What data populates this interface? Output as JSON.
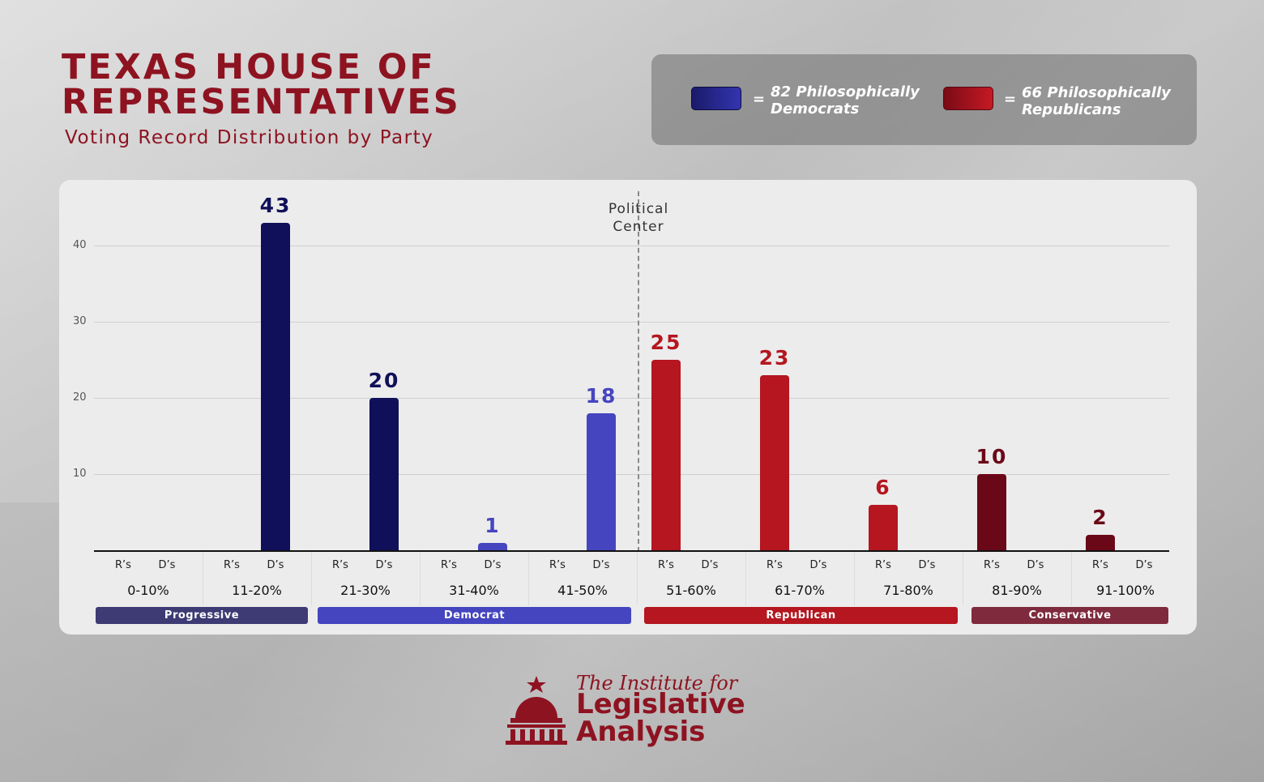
{
  "header": {
    "title_line1": "TEXAS HOUSE OF",
    "title_line2": "REPRESENTATIVES",
    "subtitle": "Voting Record Distribution by Party"
  },
  "legend": {
    "eq": "=",
    "democrats_line1": "82 Philosophically",
    "democrats_line2": "Democrats",
    "republicans_line1": "66 Philosophically",
    "republicans_line2": "Republicans",
    "democrat_color": "#2b2b9a",
    "republican_color": "#b5141f"
  },
  "chart_data": {
    "type": "bar",
    "title": "TEXAS HOUSE OF REPRESENTATIVES",
    "subtitle": "Voting Record Distribution by Party",
    "ylim": [
      0,
      43
    ],
    "yticks": [
      10,
      20,
      30,
      40
    ],
    "center_label_line1": "Political",
    "center_label_line2": "Center",
    "sub_labels": [
      "R’s",
      "D’s"
    ],
    "categories": [
      "0-10%",
      "11-20%",
      "21-30%",
      "31-40%",
      "41-50%",
      "51-60%",
      "61-70%",
      "71-80%",
      "81-90%",
      "91-100%"
    ],
    "series": [
      {
        "name": "R’s",
        "values": [
          0,
          0,
          0,
          0,
          0,
          25,
          23,
          6,
          10,
          2
        ]
      },
      {
        "name": "D’s",
        "values": [
          0,
          43,
          20,
          1,
          18,
          0,
          0,
          0,
          0,
          0
        ]
      }
    ],
    "bar_colors": {
      "11-20%": "#10105a",
      "21-30%": "#10105a",
      "31-40%": "#4545c0",
      "41-50%": "#4545c0",
      "51-60%": "#b5161f",
      "61-70%": "#b5161f",
      "71-80%": "#b5161f",
      "81-90%": "#6b0818",
      "91-100%": "#6b0818"
    },
    "bands": [
      {
        "label": "Progressive",
        "color": "#3d3a74"
      },
      {
        "label": "Democrat",
        "color": "#4545c0"
      },
      {
        "label": "Republican",
        "color": "#b5161f"
      },
      {
        "label": "Conservative",
        "color": "#7f2a3d"
      }
    ]
  },
  "logo": {
    "line1": "The Institute for",
    "line2": "Legislative",
    "line3": "Analysis"
  }
}
